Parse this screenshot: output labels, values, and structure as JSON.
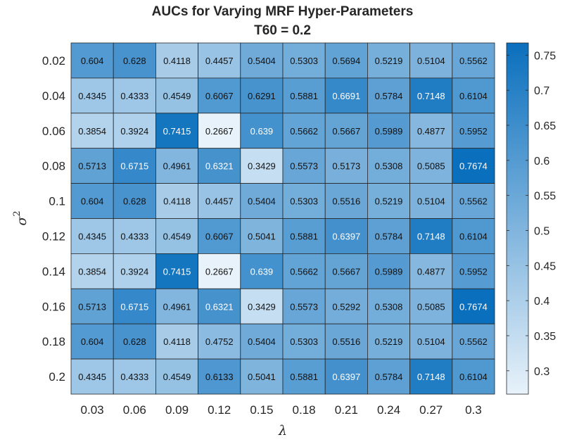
{
  "chart_data": {
    "type": "heatmap",
    "title": "AUCs for Varying MRF Hyper-Parameters",
    "subtitle": "T60 = 0.2",
    "xlabel": "λ",
    "ylabel": "σ",
    "ylabel_superscript": "2",
    "x": [
      "0.03",
      "0.06",
      "0.09",
      "0.12",
      "0.15",
      "0.18",
      "0.21",
      "0.24",
      "0.27",
      "0.3"
    ],
    "y": [
      "0.02",
      "0.04",
      "0.06",
      "0.08",
      "0.1",
      "0.12",
      "0.14",
      "0.16",
      "0.18",
      "0.2"
    ],
    "values": [
      [
        "0.604",
        "0.628",
        "0.4118",
        "0.4457",
        "0.5404",
        "0.5303",
        "0.5694",
        "0.5219",
        "0.5104",
        "0.5562"
      ],
      [
        "0.4345",
        "0.4333",
        "0.4549",
        "0.6067",
        "0.6291",
        "0.5881",
        "0.6691",
        "0.5784",
        "0.7148",
        "0.6104"
      ],
      [
        "0.3854",
        "0.3924",
        "0.7415",
        "0.2667",
        "0.639",
        "0.5662",
        "0.5667",
        "0.5989",
        "0.4877",
        "0.5952"
      ],
      [
        "0.5713",
        "0.6715",
        "0.4961",
        "0.6321",
        "0.3429",
        "0.5573",
        "0.5173",
        "0.5308",
        "0.5085",
        "0.7674"
      ],
      [
        "0.604",
        "0.628",
        "0.4118",
        "0.4457",
        "0.5404",
        "0.5303",
        "0.5516",
        "0.5219",
        "0.5104",
        "0.5562"
      ],
      [
        "0.4345",
        "0.4333",
        "0.4549",
        "0.6067",
        "0.5041",
        "0.5881",
        "0.6397",
        "0.5784",
        "0.7148",
        "0.6104"
      ],
      [
        "0.3854",
        "0.3924",
        "0.7415",
        "0.2667",
        "0.639",
        "0.5662",
        "0.5667",
        "0.5989",
        "0.4877",
        "0.5952"
      ],
      [
        "0.5713",
        "0.6715",
        "0.4961",
        "0.6321",
        "0.3429",
        "0.5573",
        "0.5292",
        "0.5308",
        "0.5085",
        "0.7674"
      ],
      [
        "0.604",
        "0.628",
        "0.4118",
        "0.4752",
        "0.5404",
        "0.5303",
        "0.5516",
        "0.5219",
        "0.5104",
        "0.5562"
      ],
      [
        "0.4345",
        "0.4333",
        "0.4549",
        "0.6133",
        "0.5041",
        "0.5881",
        "0.6397",
        "0.5784",
        "0.7148",
        "0.6104"
      ]
    ],
    "colorbar": {
      "ticks": [
        "0.3",
        "0.35",
        "0.4",
        "0.45",
        "0.5",
        "0.55",
        "0.6",
        "0.65",
        "0.7",
        "0.75"
      ],
      "range": [
        0.2667,
        0.7674
      ],
      "colors": [
        "#e8f2fa",
        "#0a6fbd"
      ]
    },
    "white_text_threshold": 0.63
  }
}
